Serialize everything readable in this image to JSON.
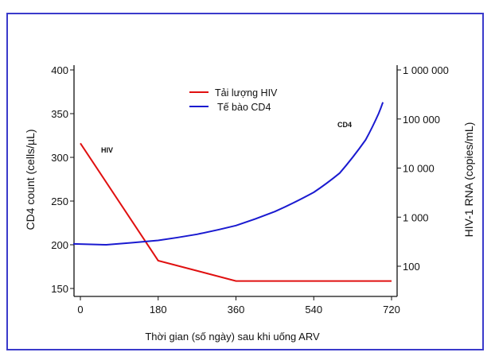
{
  "chart_data": {
    "type": "line",
    "xlabel": "Thời gian (số ngày) sau khi uống ARV",
    "ylabel": "CD4 count (cells/µL)",
    "y2label": "HIV-1 RNA (copies/mL)",
    "x_ticks": [
      0,
      180,
      360,
      540,
      720
    ],
    "x_tick_labels": [
      "0",
      "180",
      "360",
      "540",
      "720"
    ],
    "y_ticks": [
      150,
      200,
      250,
      300,
      350,
      400
    ],
    "y_tick_labels": [
      "150",
      "200",
      "250",
      "300",
      "350",
      "400"
    ],
    "y2_ticks": [
      100,
      1000,
      10000,
      100000,
      1000000
    ],
    "y2_tick_labels": [
      "100",
      "1 000",
      "10 000",
      "100 000",
      "1 000 000"
    ],
    "y2_scale": "log",
    "grid": false,
    "legend_position": "top-center",
    "series": [
      {
        "name": "Tải lượng HIV",
        "color": "#e01010",
        "axis": "right",
        "x": [
          0,
          180,
          360,
          720
        ],
        "y": [
          32000,
          130,
          50,
          50
        ]
      },
      {
        "name": "Tế bào CD4",
        "color": "#1a1ad0",
        "axis": "left",
        "x": [
          -18,
          60,
          180,
          270,
          360,
          450,
          540,
          600,
          660,
          690,
          700
        ],
        "y": [
          201,
          200,
          205,
          212,
          222,
          238,
          260,
          282,
          320,
          350,
          363
        ]
      }
    ],
    "annotations": [
      {
        "text": "HIV"
      },
      {
        "text": "CD4"
      }
    ]
  }
}
